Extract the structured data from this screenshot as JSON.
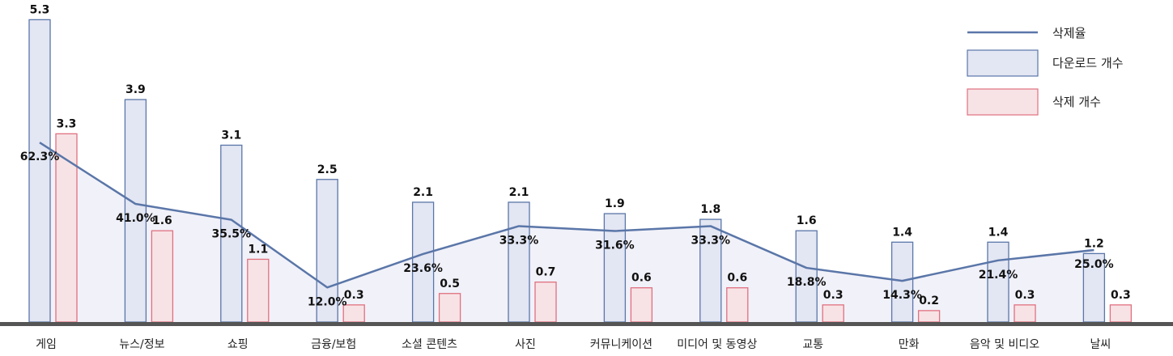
{
  "chart_data": {
    "type": "bar",
    "categories": [
      "게임",
      "뉴스/정보",
      "쇼핑",
      "금융/보험",
      "소셜 콘텐츠",
      "사진",
      "커뮤니케이션",
      "미디어 및 동영상",
      "교통",
      "만화",
      "음악 및 비디오",
      "날씨"
    ],
    "series": [
      {
        "name": "다운로드 개수",
        "kind": "bar",
        "values": [
          5.3,
          3.9,
          3.1,
          2.5,
          2.1,
          2.1,
          1.9,
          1.8,
          1.6,
          1.4,
          1.4,
          1.2
        ],
        "labels": [
          "5.3",
          "3.9",
          "3.1",
          "2.5",
          "2.1",
          "2.1",
          "1.9",
          "1.8",
          "1.6",
          "1.4",
          "1.4",
          "1.2"
        ]
      },
      {
        "name": "삭제 개수",
        "kind": "bar",
        "values": [
          3.3,
          1.6,
          1.1,
          0.3,
          0.5,
          0.7,
          0.6,
          0.6,
          0.3,
          0.2,
          0.3,
          0.3
        ],
        "labels": [
          "3.3",
          "1.6",
          "1.1",
          "0.3",
          "0.5",
          "0.7",
          "0.6",
          "0.6",
          "0.3",
          "0.2",
          "0.3",
          "0.3"
        ]
      },
      {
        "name": "삭제율",
        "kind": "line",
        "values": [
          62.3,
          41.0,
          35.5,
          12.0,
          23.6,
          33.3,
          31.6,
          33.3,
          18.8,
          14.3,
          21.4,
          25.0
        ],
        "labels": [
          "62.3%",
          "41.0%",
          "35.5%",
          "12.0%",
          "23.6%",
          "33.3%",
          "31.6%",
          "33.3%",
          "18.8%",
          "14.3%",
          "21.4%",
          "25.0%"
        ]
      }
    ],
    "legend": [
      "삭제율",
      "다운로드 개수",
      "삭제 개수"
    ],
    "legend_position": "top-right",
    "grid": false,
    "colors": {
      "download_fill": "#e3e6f3",
      "download_stroke": "#5a76a8",
      "delete_fill": "#f7e3e6",
      "delete_stroke": "#e0707f",
      "rate_line": "#5a76a8",
      "rate_area": "#eeeef8",
      "baseline": "#555555"
    }
  }
}
